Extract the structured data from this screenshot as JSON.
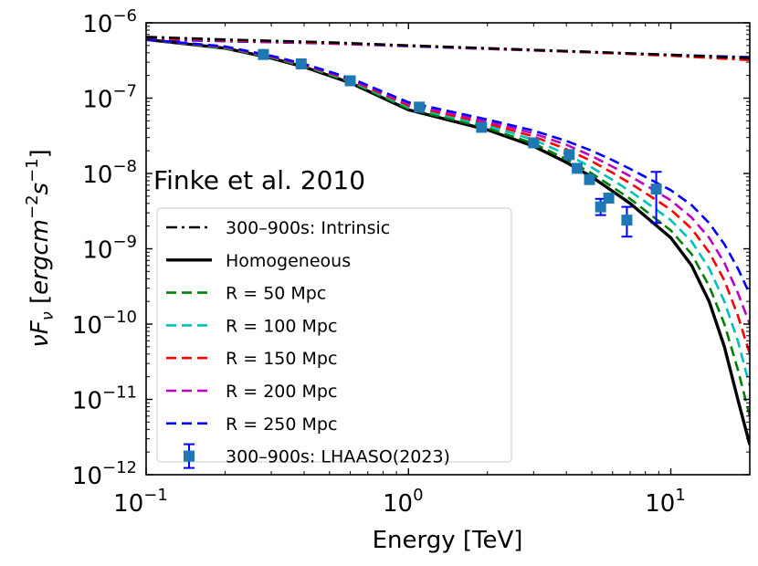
{
  "chart_data": {
    "type": "line",
    "annotation": "Finke et al. 2010",
    "xlabel": "Energy [TeV]",
    "ylabel": "νF_ν [ergcm^-2 s^-1]",
    "x_scale": "log",
    "y_scale": "log",
    "xlim": [
      0.1,
      20
    ],
    "ylim": [
      1e-12,
      1e-06
    ],
    "x_ticks": [
      {
        "value": 0.1,
        "base": "10",
        "exp": "−1"
      },
      {
        "value": 1,
        "base": "10",
        "exp": "0"
      },
      {
        "value": 10,
        "base": "10",
        "exp": "1"
      }
    ],
    "y_ticks": [
      {
        "value": 1e-12,
        "base": "10",
        "exp": "−12"
      },
      {
        "value": 1e-11,
        "base": "10",
        "exp": "−11"
      },
      {
        "value": 1e-10,
        "base": "10",
        "exp": "−10"
      },
      {
        "value": 1e-09,
        "base": "10",
        "exp": "−9"
      },
      {
        "value": 1e-08,
        "base": "10",
        "exp": "−8"
      },
      {
        "value": 1e-07,
        "base": "10",
        "exp": "−7"
      },
      {
        "value": 1e-06,
        "base": "10",
        "exp": "−6"
      }
    ],
    "grid": false,
    "legend_position": "lower-left",
    "series": [
      {
        "name": "300–900s: Intrinsic",
        "color": "#000000",
        "style": "dashdot",
        "x": [
          0.1,
          0.2,
          0.5,
          1,
          2,
          5,
          10,
          20
        ],
        "y": [
          6.5e-07,
          6e-07,
          5.5e-07,
          5e-07,
          4.6e-07,
          4.1e-07,
          3.75e-07,
          3.4e-07
        ]
      },
      {
        "name": "Homogeneous",
        "color": "#000000",
        "style": "solid",
        "x": [
          0.1,
          0.2,
          0.3,
          0.4,
          0.6,
          1,
          2,
          3,
          4,
          5,
          6,
          7,
          8,
          10,
          12,
          14,
          16,
          18,
          20
        ],
        "y": [
          6e-07,
          4.6e-07,
          3.4e-07,
          2.6e-07,
          1.6e-07,
          7e-08,
          3.8e-08,
          2.3e-08,
          1.4e-08,
          9e-09,
          5.8e-09,
          4e-09,
          2.7e-09,
          1.4e-09,
          6e-10,
          2e-10,
          5e-11,
          1e-11,
          2.5e-12
        ]
      },
      {
        "name": "R = 50 Mpc",
        "color": "#008000",
        "style": "dashed",
        "x": [
          0.1,
          0.2,
          0.3,
          0.4,
          0.6,
          1,
          2,
          3,
          4,
          5,
          6,
          7,
          8,
          10,
          12,
          14,
          16,
          18,
          20
        ],
        "y": [
          6e-07,
          4.6e-07,
          3.45e-07,
          2.65e-07,
          1.65e-07,
          7.2e-08,
          4e-08,
          2.5e-08,
          1.55e-08,
          1e-08,
          6.6e-09,
          4.6e-09,
          3.2e-09,
          1.75e-09,
          8.5e-10,
          3.2e-10,
          1e-10,
          2.5e-11,
          6e-12
        ]
      },
      {
        "name": "R = 100 Mpc",
        "color": "#00BFBF",
        "style": "dashed",
        "x": [
          0.1,
          0.2,
          0.3,
          0.4,
          0.6,
          1,
          2,
          3,
          4,
          5,
          6,
          7,
          8,
          10,
          12,
          14,
          16,
          18,
          20
        ],
        "y": [
          6e-07,
          4.7e-07,
          3.5e-07,
          2.7e-07,
          1.7e-07,
          7.6e-08,
          4.3e-08,
          2.8e-08,
          1.8e-08,
          1.2e-08,
          8.2e-09,
          5.8e-09,
          4.2e-09,
          2.4e-09,
          1.25e-09,
          5.5e-10,
          2e-10,
          6e-11,
          1.5e-11
        ]
      },
      {
        "name": "R = 150 Mpc",
        "color": "#FF0000",
        "style": "dashed",
        "x": [
          0.1,
          0.2,
          0.3,
          0.4,
          0.6,
          1,
          2,
          3,
          4,
          5,
          6,
          7,
          8,
          10,
          12,
          14,
          16,
          18,
          20
        ],
        "y": [
          6e-07,
          4.75e-07,
          3.55e-07,
          2.75e-07,
          1.75e-07,
          8e-08,
          4.6e-08,
          3.1e-08,
          2.1e-08,
          1.45e-08,
          1.02e-08,
          7.4e-09,
          5.5e-09,
          3.3e-09,
          1.85e-09,
          9e-10,
          3.8e-10,
          1.3e-10,
          4e-11
        ]
      },
      {
        "name": "R = 200 Mpc",
        "color": "#BF00BF",
        "style": "dashed",
        "x": [
          0.1,
          0.2,
          0.3,
          0.4,
          0.6,
          1,
          2,
          3,
          4,
          5,
          6,
          7,
          8,
          10,
          12,
          14,
          16,
          18,
          20
        ],
        "y": [
          6e-07,
          4.8e-07,
          3.6e-07,
          2.8e-07,
          1.8e-07,
          8.4e-08,
          4.9e-08,
          3.4e-08,
          2.4e-08,
          1.7e-08,
          1.23e-08,
          9.2e-09,
          7e-09,
          4.4e-09,
          2.6e-09,
          1.4e-09,
          6.5e-10,
          2.6e-10,
          1e-10
        ]
      },
      {
        "name": "R = 250 Mpc",
        "color": "#0000FF",
        "style": "dashed",
        "x": [
          0.1,
          0.2,
          0.3,
          0.4,
          0.6,
          1,
          2,
          3,
          4,
          5,
          6,
          7,
          8,
          10,
          12,
          14,
          16,
          18,
          20
        ],
        "y": [
          6e-07,
          4.85e-07,
          3.65e-07,
          2.85e-07,
          1.85e-07,
          8.8e-08,
          5.2e-08,
          3.7e-08,
          2.7e-08,
          2e-08,
          1.5e-08,
          1.15e-08,
          9e-09,
          6e-09,
          3.8e-09,
          2.2e-09,
          1.15e-09,
          5.5e-10,
          2.5e-10
        ]
      },
      {
        "name": "R = 250 Mpc (intrinsic)",
        "color": "#0000FF",
        "style": "dashdot",
        "legend": false,
        "x": [
          0.1,
          0.2,
          0.5,
          1,
          2,
          5,
          10,
          20
        ],
        "y": [
          6e-07,
          5.7e-07,
          5.3e-07,
          4.9e-07,
          4.5e-07,
          4.05e-07,
          3.75e-07,
          3.5e-07
        ]
      },
      {
        "name": "R = 200 Mpc (intrinsic)",
        "color": "#BF00BF",
        "style": "dashdot",
        "legend": false,
        "x": [
          0.1,
          0.2,
          0.5,
          1,
          2,
          5,
          10,
          20
        ],
        "y": [
          6.2e-07,
          5.8e-07,
          5.35e-07,
          4.95e-07,
          4.55e-07,
          4.1e-07,
          3.7e-07,
          3.3e-07
        ]
      },
      {
        "name": "R = 150 Mpc (intrinsic)",
        "color": "#FF0000",
        "style": "dashdot",
        "legend": false,
        "x": [
          0.1,
          0.2,
          0.5,
          1,
          2,
          5,
          10,
          20
        ],
        "y": [
          6.3e-07,
          5.9e-07,
          5.4e-07,
          5e-07,
          4.55e-07,
          4.05e-07,
          3.65e-07,
          3.2e-07
        ]
      }
    ],
    "data_points": {
      "name": "300–900s: LHAASO(2023)",
      "color": "#1F77B4",
      "errorbar_color": "#0000FF",
      "points": [
        {
          "x": 0.28,
          "y": 3.8e-07
        },
        {
          "x": 0.39,
          "y": 2.85e-07
        },
        {
          "x": 0.6,
          "y": 1.7e-07
        },
        {
          "x": 1.1,
          "y": 7.6e-08
        },
        {
          "x": 1.9,
          "y": 4.1e-08
        },
        {
          "x": 3.0,
          "y": 2.55e-08
        },
        {
          "x": 4.1,
          "y": 1.78e-08
        },
        {
          "x": 4.4,
          "y": 1.17e-08
        },
        {
          "x": 4.9,
          "y": 8.3e-09
        },
        {
          "x": 5.4,
          "y": 3.6e-09,
          "ylo": 2.8e-09,
          "yhi": 4.6e-09
        },
        {
          "x": 5.8,
          "y": 4.7e-09
        },
        {
          "x": 6.8,
          "y": 2.4e-09,
          "ylo": 1.45e-09,
          "yhi": 3.6e-09
        },
        {
          "x": 8.8,
          "y": 6.2e-09,
          "ylo": 2.2e-09,
          "yhi": 1.05e-08
        }
      ]
    }
  }
}
